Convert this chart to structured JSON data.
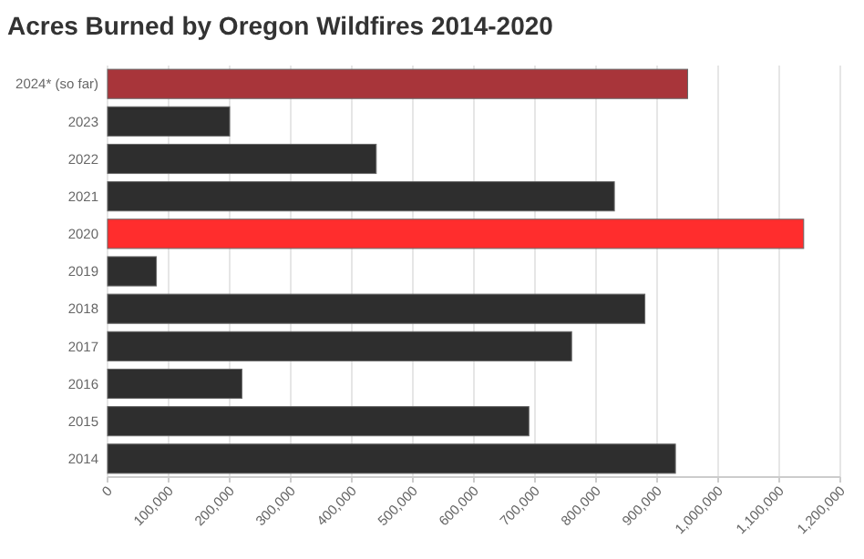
{
  "chart_data": {
    "type": "bar",
    "orientation": "horizontal",
    "title": "Acres Burned by Oregon Wildfires 2014-2020",
    "categories": [
      "2024* (so far)",
      "2023",
      "2022",
      "2021",
      "2020",
      "2019",
      "2018",
      "2017",
      "2016",
      "2015",
      "2014"
    ],
    "values": [
      950000,
      200000,
      440000,
      830000,
      1140000,
      80000,
      880000,
      760000,
      220000,
      690000,
      930000
    ],
    "colors": [
      "#a8353a",
      "#2e2e2e",
      "#2e2e2e",
      "#2e2e2e",
      "#ff2d2d",
      "#2e2e2e",
      "#2e2e2e",
      "#2e2e2e",
      "#2e2e2e",
      "#2e2e2e",
      "#2e2e2e"
    ],
    "xlim": [
      0,
      1200000
    ],
    "xticks": [
      0,
      {
        "value": 100000,
        "label": "100,000"
      },
      {
        "value": 200000,
        "label": "200,000"
      },
      {
        "value": 300000,
        "label": "300,000"
      },
      {
        "value": 400000,
        "label": "400,000"
      },
      {
        "value": 500000,
        "label": "500,000"
      },
      {
        "value": 600000,
        "label": "600,000"
      },
      {
        "value": 700000,
        "label": "700,000"
      },
      {
        "value": 800000,
        "label": "800,000"
      },
      {
        "value": 900000,
        "label": "900,000"
      },
      {
        "value": 1000000,
        "label": "1,000,000"
      },
      {
        "value": 1100000,
        "label": "1,100,000"
      },
      {
        "value": 1200000,
        "label": "1,200,000"
      }
    ],
    "grid": "x"
  }
}
